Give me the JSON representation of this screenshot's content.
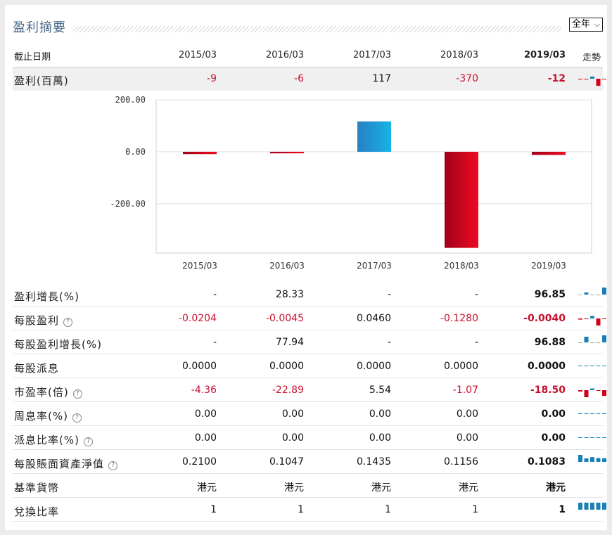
{
  "title": "盈利摘要",
  "period_select": {
    "value": "全年"
  },
  "header": {
    "label": "截止日期",
    "periods": [
      "2015/03",
      "2016/03",
      "2017/03",
      "2018/03",
      "2019/03"
    ],
    "trend_label": "走勢"
  },
  "rows": [
    {
      "label": "盈利(百萬)",
      "values": [
        "-9",
        "-6",
        "117",
        "-370",
        "-12"
      ],
      "help": false
    },
    {
      "label": "盈利增長(%)",
      "values": [
        "-",
        "28.33",
        "-",
        "-",
        "96.85"
      ],
      "help": false
    },
    {
      "label": "每股盈利",
      "values": [
        "-0.0204",
        "-0.0045",
        "0.0460",
        "-0.1280",
        "-0.0040"
      ],
      "help": true
    },
    {
      "label": "每股盈利增長(%)",
      "values": [
        "-",
        "77.94",
        "-",
        "-",
        "96.88"
      ],
      "help": false
    },
    {
      "label": "每股派息",
      "values": [
        "0.0000",
        "0.0000",
        "0.0000",
        "0.0000",
        "0.0000"
      ],
      "help": false
    },
    {
      "label": "市盈率(倍)",
      "values": [
        "-4.36",
        "-22.89",
        "5.54",
        "-1.07",
        "-18.50"
      ],
      "help": true
    },
    {
      "label": "周息率(%)",
      "values": [
        "0.00",
        "0.00",
        "0.00",
        "0.00",
        "0.00"
      ],
      "help": true
    },
    {
      "label": "派息比率(%)",
      "values": [
        "0.00",
        "0.00",
        "0.00",
        "0.00",
        "0.00"
      ],
      "help": true
    },
    {
      "label": "每股賬面資產淨值",
      "values": [
        "0.2100",
        "0.1047",
        "0.1435",
        "0.1156",
        "0.1083"
      ],
      "help": true
    },
    {
      "label": "基準貨幣",
      "values": [
        "港元",
        "港元",
        "港元",
        "港元",
        "港元"
      ],
      "help": false
    },
    {
      "label": "兌換比率",
      "values": [
        "1",
        "1",
        "1",
        "1",
        "1"
      ],
      "help": false
    }
  ],
  "colors": {
    "negative": "#c8102e",
    "positive_bar": "#1aa0d8",
    "negative_bar": "#d0021b"
  },
  "chart_data": {
    "type": "bar",
    "categories": [
      "2015/03",
      "2016/03",
      "2017/03",
      "2018/03",
      "2019/03"
    ],
    "values": [
      -9,
      -6,
      117,
      -370,
      -12
    ],
    "y_ticks": [
      "200.00",
      "0.00",
      "-200.00"
    ],
    "ylim": [
      -390,
      200
    ],
    "grid": true
  }
}
